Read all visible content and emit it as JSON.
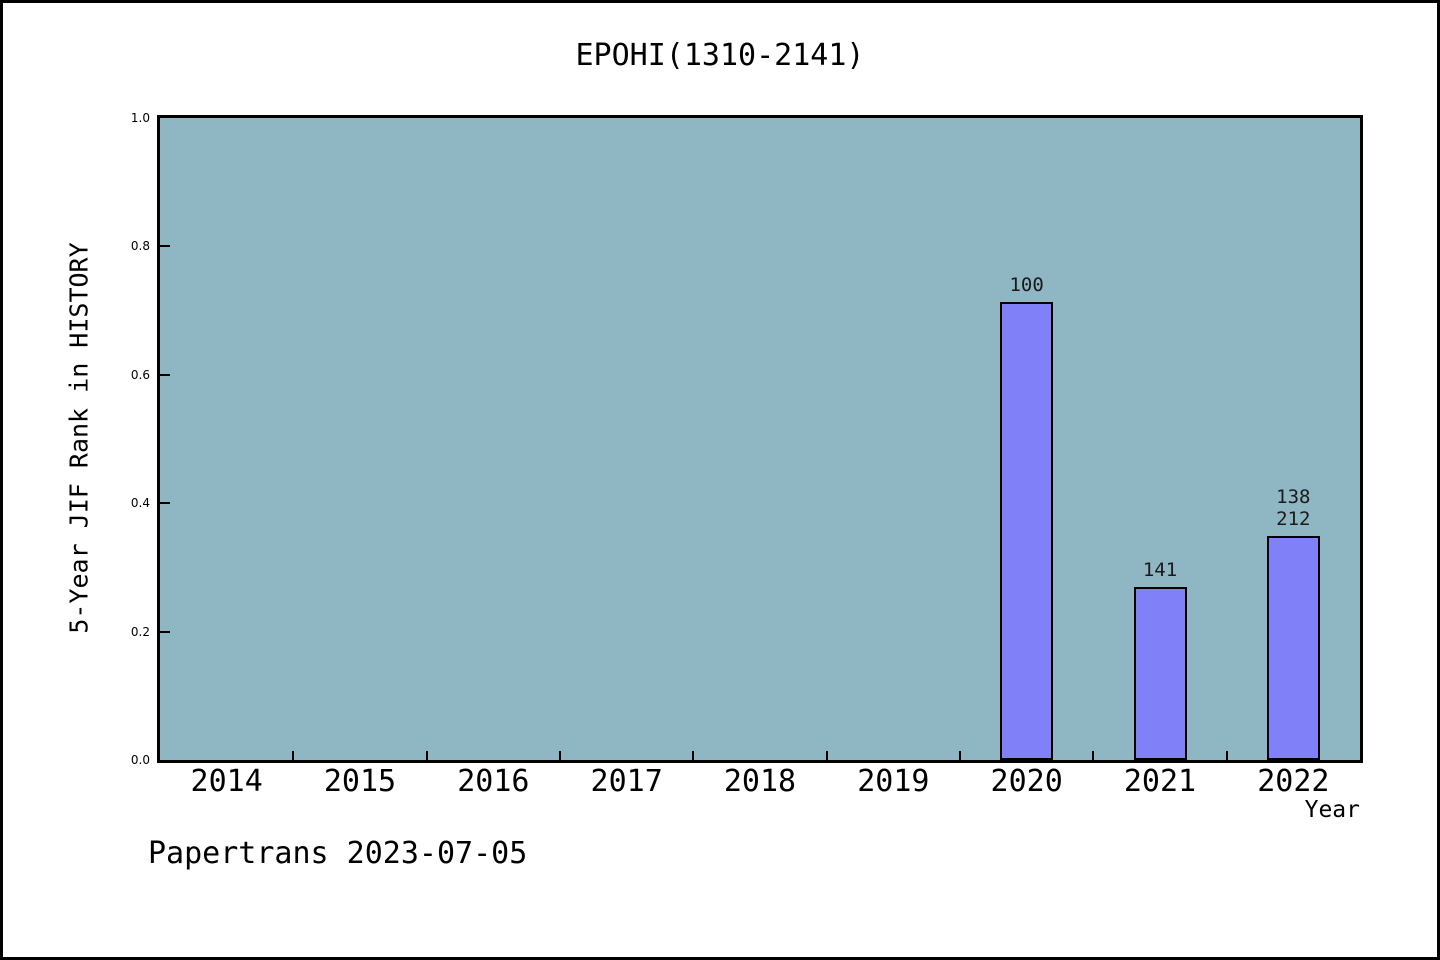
{
  "page": {
    "background": "#ffffff",
    "frame_color": "#000000"
  },
  "chart_data": {
    "type": "bar",
    "title": "EPOHI(1310-2141)",
    "xlabel": "Year",
    "ylabel": "5-Year JIF Rank in HISTORY",
    "categories": [
      "2014",
      "2015",
      "2016",
      "2017",
      "2018",
      "2019",
      "2020",
      "2021",
      "2022"
    ],
    "bars": [
      {
        "year": "2020",
        "label_lines": [
          "100"
        ],
        "height_frac": 0.714
      },
      {
        "year": "2021",
        "label_lines": [
          "141"
        ],
        "height_frac": 0.269
      },
      {
        "year": "2022",
        "label_lines": [
          "138",
          "212"
        ],
        "height_frac": 0.349
      }
    ],
    "yticks": [
      "0.0",
      "0.2",
      "0.4",
      "0.6",
      "0.8",
      "1.0"
    ],
    "ylim": [
      0,
      1
    ],
    "grid": false,
    "legend": false,
    "plot_bg_color": "#8FB6C3",
    "bar_fill_color": "#8080F8",
    "bar_border_color": "#000000",
    "tick_direction": "in"
  },
  "footer": {
    "text": "Papertrans 2023-07-05"
  }
}
